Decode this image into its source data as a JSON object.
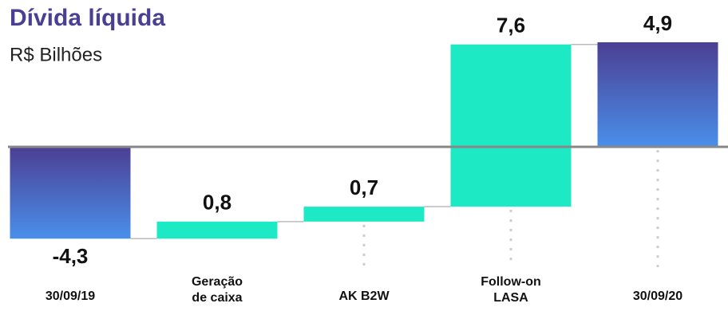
{
  "chart_data": {
    "type": "waterfall",
    "title": "Dívida líquida",
    "subtitle": "R$ Bilhões",
    "categories": [
      "30/09/19",
      "Geração\nde caixa",
      "AK B2W",
      "Follow-on\nLASA",
      "30/09/20"
    ],
    "values": [
      -4.3,
      0.8,
      0.7,
      7.6,
      4.9
    ],
    "value_labels": [
      "-4,3",
      "0,8",
      "0,7",
      "7,6",
      "4,9"
    ],
    "color": "#1de9c4",
    "total_colors": [
      "#4b3f93",
      "#4a8fea"
    ],
    "ylim": [
      -5,
      5.2
    ]
  }
}
